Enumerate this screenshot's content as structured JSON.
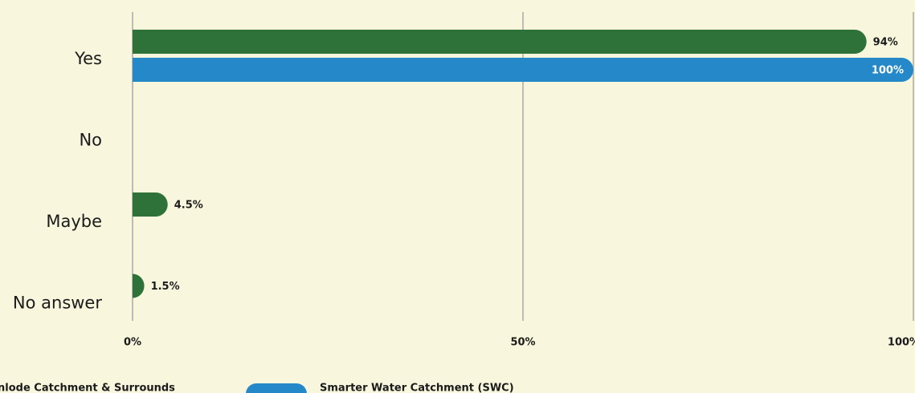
{
  "chart_data": {
    "type": "bar",
    "orientation": "horizontal",
    "categories": [
      "Yes",
      "No",
      "Maybe",
      "No answer"
    ],
    "series": [
      {
        "name": "nlode Catchment & Surrounds",
        "color": "#2e7239",
        "values": [
          94,
          null,
          4.5,
          1.5
        ],
        "value_labels": [
          "94%",
          null,
          "4.5%",
          "1.5%"
        ]
      },
      {
        "name": "Smarter Water Catchment (SWC)",
        "color": "#2589c9",
        "values": [
          100,
          null,
          null,
          null
        ],
        "value_labels": [
          "100%",
          null,
          null,
          null
        ]
      }
    ],
    "xlim": [
      0,
      100
    ],
    "xticks": [
      {
        "value": 0,
        "label": "0%"
      },
      {
        "value": 50,
        "label": "50%"
      },
      {
        "value": 100,
        "label": "100%"
      }
    ],
    "grid": true
  }
}
